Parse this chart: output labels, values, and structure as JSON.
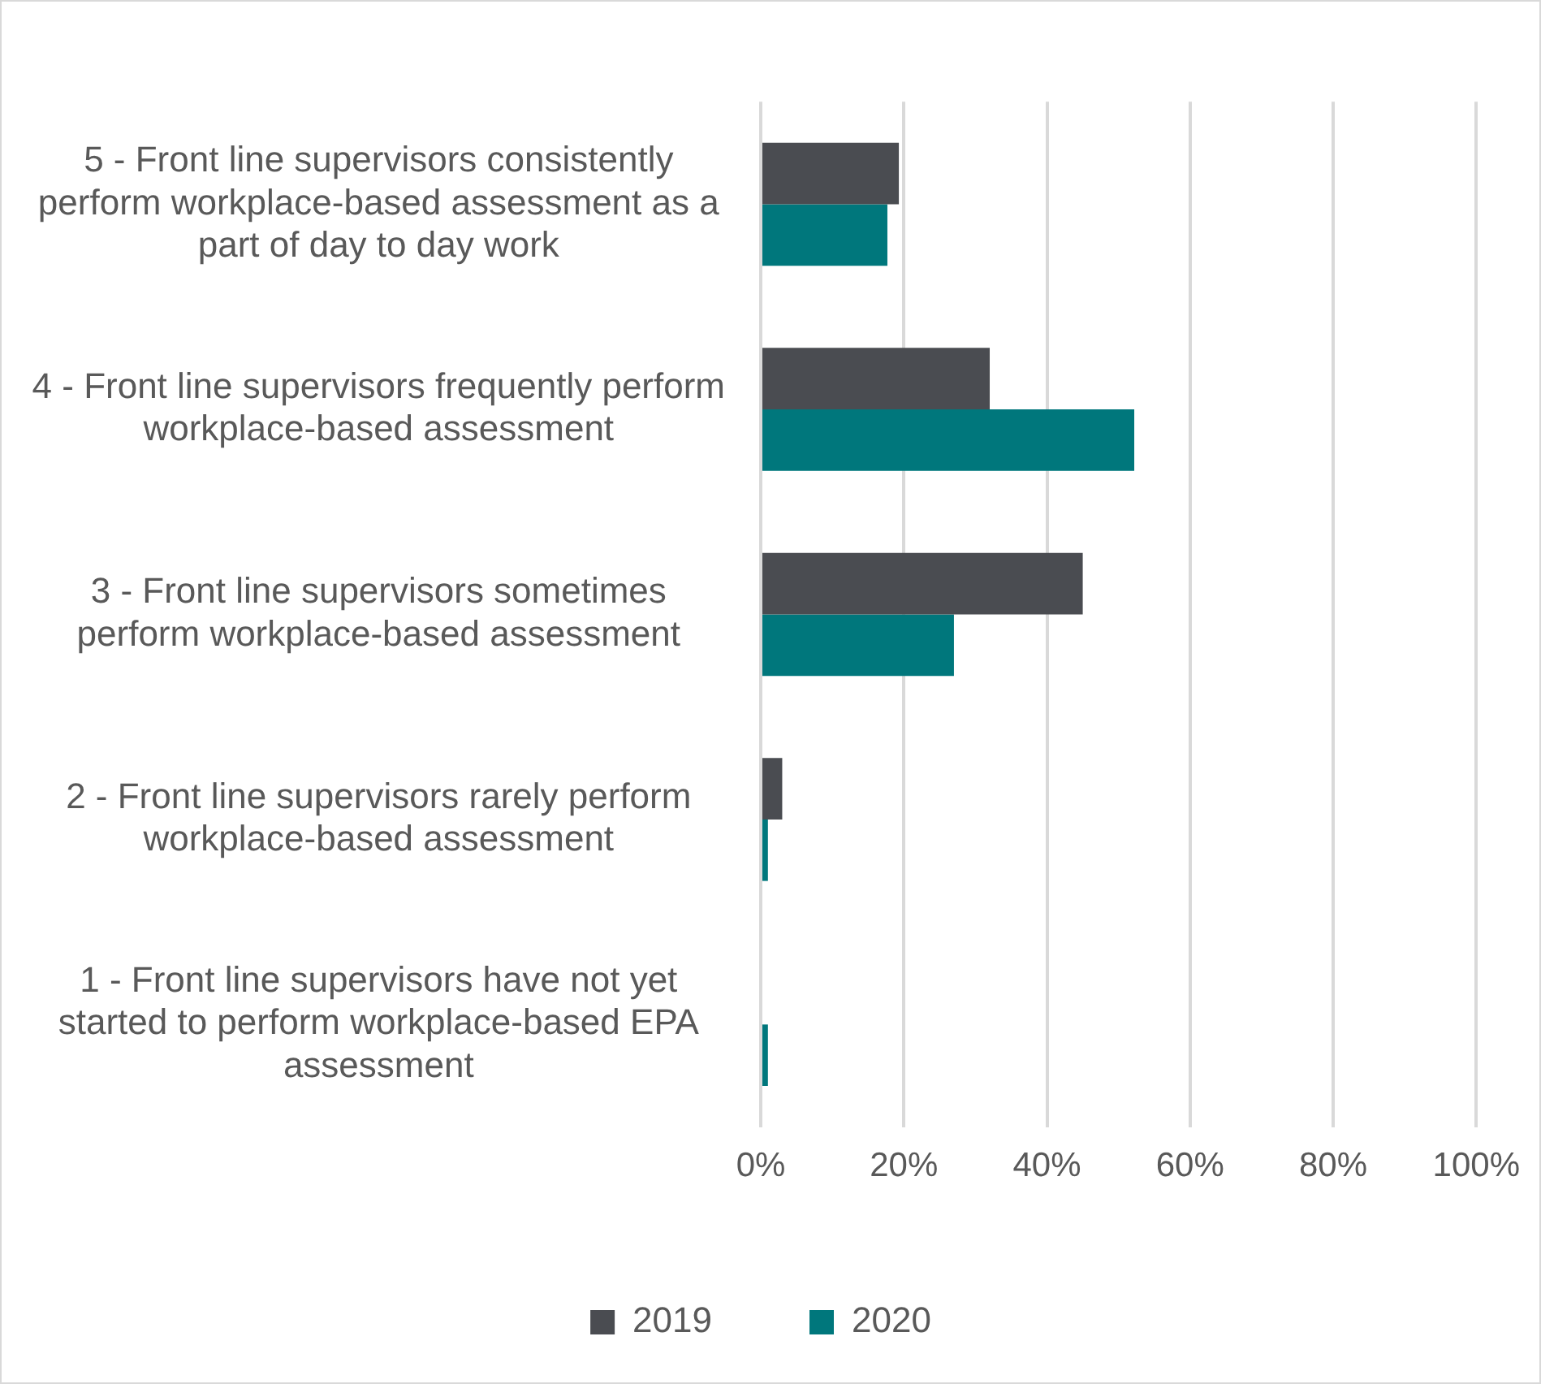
{
  "chart_data": {
    "type": "bar",
    "orientation": "horizontal",
    "categories": [
      "5 - Front line supervisors consistently perform workplace-based assessment as a part of day to day work",
      "4 - Front line supervisors frequently perform workplace-based assessment",
      "3 - Front line supervisors sometimes perform workplace-based assessment",
      "2 - Front line supervisors rarely perform workplace-based assessment",
      "1 - Front line supervisors have not yet started to perform workplace-based EPA assessment"
    ],
    "series": [
      {
        "name": "2019",
        "color": "#4a4c51",
        "values": [
          19.3,
          32,
          45,
          3,
          0
        ]
      },
      {
        "name": "2020",
        "color": "#00777c",
        "values": [
          17.7,
          52.2,
          27,
          1,
          1
        ]
      }
    ],
    "xlim": [
      0,
      100
    ],
    "xticks": [
      {
        "value": 0,
        "label": "0%"
      },
      {
        "value": 20,
        "label": "20%"
      },
      {
        "value": 40,
        "label": "40%"
      },
      {
        "value": 60,
        "label": "60%"
      },
      {
        "value": 80,
        "label": "80%"
      },
      {
        "value": 100,
        "label": "100%"
      }
    ],
    "grid": "x",
    "legend": "bottom"
  }
}
